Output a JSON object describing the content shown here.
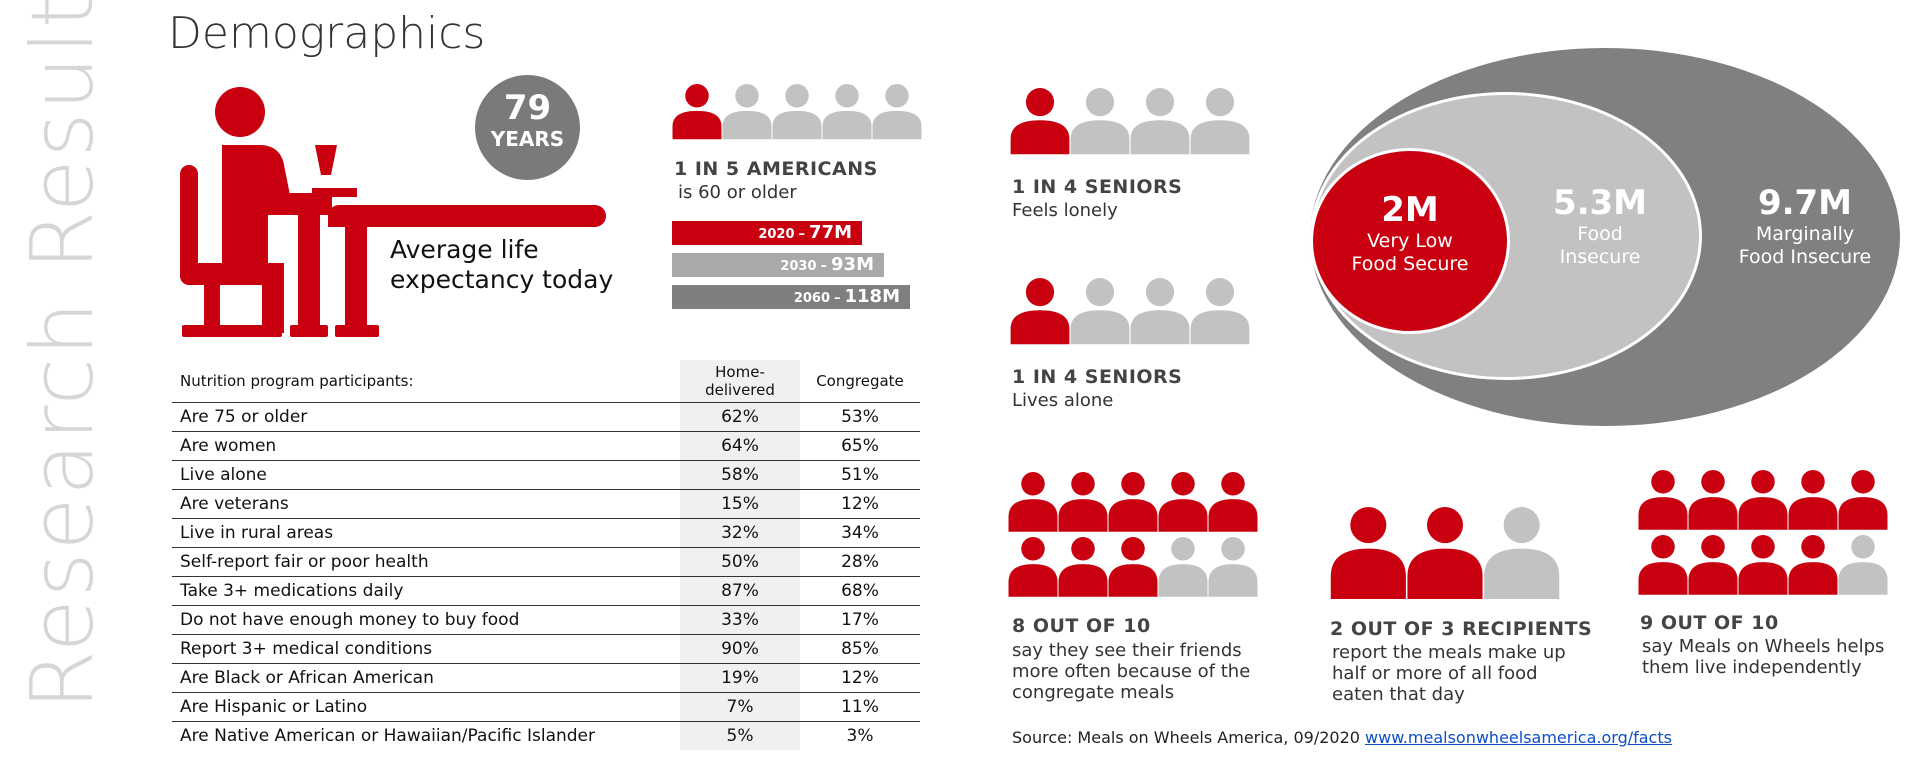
{
  "side_title": "Research Results",
  "page_title": "Demographics",
  "colors": {
    "red": "#c8000f",
    "gray": "#c2c2c2",
    "dark_gray": "#808080"
  },
  "life_expectancy": {
    "years_value": "79",
    "years_unit": "YEARS",
    "caption_line1": "Average life",
    "caption_line2": "expectancy today"
  },
  "americans": {
    "icon_total": 5,
    "icon_highlight": 1,
    "headline": "1 IN 5 AMERICANS",
    "subtitle": "is 60 or older",
    "bars": [
      {
        "year": "2020",
        "sep": "–",
        "value": "77M",
        "color": "#c8000f"
      },
      {
        "year": "2030",
        "sep": "–",
        "value": "93M",
        "color": "#a9a9a9"
      },
      {
        "year": "2060",
        "sep": "–",
        "value": "118M",
        "color": "#7f7f7f"
      }
    ]
  },
  "seniors_lonely": {
    "icon_total": 4,
    "icon_highlight": 1,
    "headline": "1 IN 4 SENIORS",
    "subtitle": "Feels lonely"
  },
  "seniors_alone": {
    "icon_total": 4,
    "icon_highlight": 1,
    "headline": "1 IN 4 SENIORS",
    "subtitle": "Lives alone"
  },
  "food_security": {
    "very_low": {
      "value": "2M",
      "line1": "Very Low",
      "line2": "Food Secure"
    },
    "insecure": {
      "value": "5.3M",
      "line1": "Food",
      "line2": "Insecure"
    },
    "marginal": {
      "value": "9.7M",
      "line1": "Marginally",
      "line2": "Food Insecure"
    }
  },
  "friends_stat": {
    "icon_total": 10,
    "icon_highlight": 8,
    "headline": "8 OUT OF 10",
    "lines": [
      "say they see their friends",
      "more often because of the",
      "congregate meals"
    ]
  },
  "meals_stat": {
    "icon_total": 3,
    "icon_highlight": 2,
    "headline": "2 OUT OF 3 RECIPIENTS",
    "lines": [
      "report the meals make up",
      "half or more of all food",
      "eaten that day"
    ]
  },
  "independence_stat": {
    "icon_total": 10,
    "icon_highlight": 9,
    "headline": "9 OUT OF 10",
    "lines": [
      "say Meals on Wheels helps",
      "them live independently"
    ]
  },
  "nutrition_table": {
    "header_label": "Nutrition program participants:",
    "col_home_line1": "Home-",
    "col_home_line2": "delivered",
    "col_congregate": "Congregate",
    "rows": [
      {
        "label": "Are 75 or older",
        "home": "62%",
        "congregate": "53%"
      },
      {
        "label": "Are women",
        "home": "64%",
        "congregate": "65%"
      },
      {
        "label": "Live alone",
        "home": "58%",
        "congregate": "51%"
      },
      {
        "label": "Are veterans",
        "home": "15%",
        "congregate": "12%"
      },
      {
        "label": "Live in rural areas",
        "home": "32%",
        "congregate": "34%"
      },
      {
        "label": "Self-report fair or poor health",
        "home": "50%",
        "congregate": "28%"
      },
      {
        "label": "Take 3+ medications daily",
        "home": "87%",
        "congregate": "68%"
      },
      {
        "label": "Do not have enough money to buy food",
        "home": "33%",
        "congregate": "17%"
      },
      {
        "label": "Report 3+ medical conditions",
        "home": "90%",
        "congregate": "85%"
      },
      {
        "label": "Are Black or African  American",
        "home": "19%",
        "congregate": "12%"
      },
      {
        "label": "Are Hispanic or Latino",
        "home": "7%",
        "congregate": "11%"
      },
      {
        "label": "Are Native American or  Hawaiian/Pacific Islander",
        "home": "5%",
        "congregate": "3%"
      }
    ]
  },
  "source": {
    "text": "Source: Meals on Wheels America, 09/2020",
    "link_text": "www.mealsonwheelsamerica.org/facts"
  }
}
